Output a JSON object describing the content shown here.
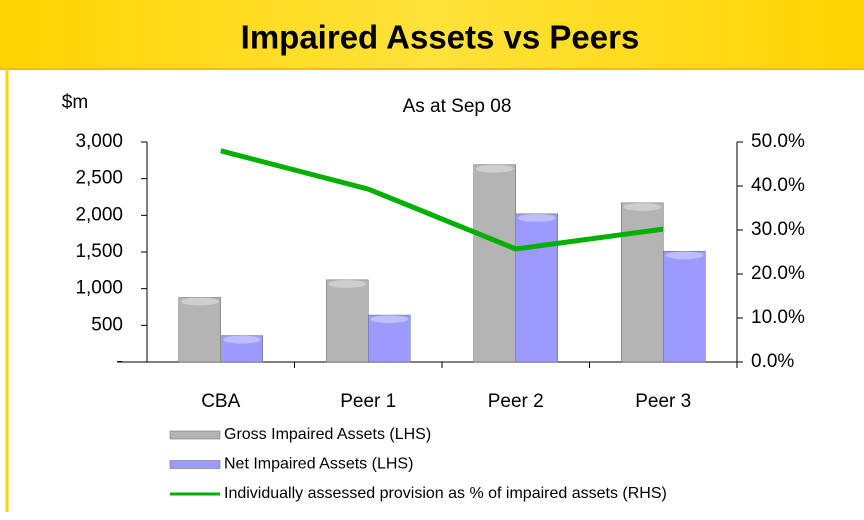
{
  "chart_data": {
    "type": "bar",
    "title": "Impaired Assets vs Peers",
    "subtitle": "As at Sep 08",
    "y_label": "$m",
    "categories": [
      "CBA",
      "Peer 1",
      "Peer 2",
      "Peer 3"
    ],
    "series": [
      {
        "name": "Gross Impaired Assets (LHS)",
        "color": "#b4b4b4",
        "values": [
          880,
          1120,
          2690,
          2170
        ]
      },
      {
        "name": "Net Impaired Assets (LHS)",
        "color": "#9a9aff",
        "values": [
          360,
          640,
          2020,
          1510
        ]
      },
      {
        "name": "Individually assessed provision as % of impaired assets (RHS)",
        "color": "#00b000",
        "type": "line",
        "axis": "y2",
        "values": [
          48,
          39.3,
          25.7,
          30.2
        ]
      }
    ],
    "ylim": [
      0,
      3000
    ],
    "yticks": [
      {
        "value": 0,
        "label": "-"
      },
      500,
      {
        "value": 1000,
        "label": "1,000"
      },
      {
        "value": 1500,
        "label": "1,500"
      },
      {
        "value": 2000,
        "label": "2,000"
      },
      {
        "value": 2500,
        "label": "2,500"
      },
      {
        "value": 3000,
        "label": "3,000"
      }
    ],
    "y2lim": [
      0,
      50
    ],
    "y2ticks": [
      {
        "value": 0,
        "label": "0.0%"
      },
      {
        "value": 10,
        "label": "10.0%"
      },
      {
        "value": 20,
        "label": "20.0%"
      },
      {
        "value": 30,
        "label": "30.0%"
      },
      {
        "value": 40,
        "label": "40.0%"
      },
      {
        "value": 50,
        "label": "50.0%"
      }
    ],
    "legend": "bottom"
  }
}
